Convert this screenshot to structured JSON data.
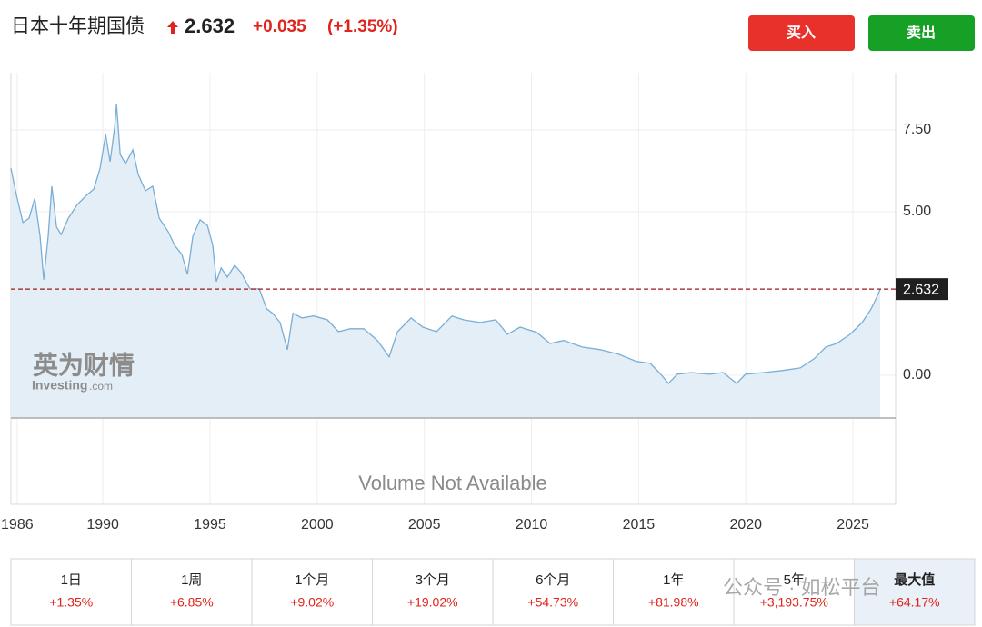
{
  "header": {
    "title": "日本十年期国债",
    "price": "2.632",
    "change": "+0.035",
    "change_pct": "(+1.35%)"
  },
  "buttons": {
    "buy": "买入",
    "sell": "卖出"
  },
  "watermark": {
    "brand": "英为财情",
    "site": "Investing",
    "domain": ".com",
    "wechat": "公众号 · 如松平台"
  },
  "volume_note": "Volume Not Available",
  "chart_data": {
    "type": "area",
    "color": "#7aaed6",
    "fill": "#e4eef6",
    "grid": true,
    "x": [
      1985.71,
      1985.97,
      1986.27,
      1986.56,
      1986.82,
      1987.07,
      1987.24,
      1987.45,
      1987.62,
      1987.84,
      1988.05,
      1988.39,
      1988.81,
      1989.24,
      1989.58,
      1989.87,
      1990.13,
      1990.34,
      1990.55,
      1990.64,
      1990.81,
      1991.06,
      1991.4,
      1991.65,
      1991.99,
      1992.33,
      1992.63,
      1993.05,
      1993.35,
      1993.69,
      1993.95,
      1994.2,
      1994.54,
      1994.88,
      1995.13,
      1995.3,
      1995.52,
      1995.81,
      1996.15,
      1996.45,
      1996.87,
      1997.3,
      1997.64,
      1997.93,
      1998.27,
      1998.61,
      1998.87,
      1999.29,
      1999.84,
      2000.48,
      2000.99,
      2001.54,
      2002.18,
      2002.81,
      2003.36,
      2003.75,
      2004.38,
      2004.93,
      2005.57,
      2006.29,
      2006.84,
      2007.61,
      2008.33,
      2008.88,
      2009.47,
      2010.24,
      2010.87,
      2011.51,
      2012.36,
      2013.21,
      2014.06,
      2014.9,
      2015.54,
      2015.96,
      2016.39,
      2016.81,
      2017.45,
      2018.3,
      2018.94,
      2019.57,
      2019.99,
      2020.84,
      2021.69,
      2022.54,
      2023.18,
      2023.73,
      2024.24,
      2024.87,
      2025.43,
      2025.85,
      2026.15,
      2026.27
    ],
    "series": [
      {
        "name": "日本十年期国债",
        "values": [
          6.33,
          5.5,
          4.67,
          4.8,
          5.4,
          4.25,
          2.92,
          4.25,
          5.78,
          4.53,
          4.3,
          4.8,
          5.22,
          5.5,
          5.69,
          6.33,
          7.36,
          6.53,
          7.58,
          8.28,
          6.75,
          6.47,
          6.89,
          6.14,
          5.64,
          5.78,
          4.8,
          4.39,
          3.97,
          3.69,
          3.08,
          4.25,
          4.75,
          4.58,
          3.97,
          2.86,
          3.28,
          3.0,
          3.36,
          3.14,
          2.64,
          2.64,
          2.03,
          1.89,
          1.61,
          0.78,
          1.89,
          1.75,
          1.81,
          1.69,
          1.33,
          1.42,
          1.42,
          1.06,
          0.56,
          1.33,
          1.75,
          1.47,
          1.33,
          1.81,
          1.69,
          1.61,
          1.69,
          1.25,
          1.47,
          1.31,
          0.97,
          1.06,
          0.86,
          0.78,
          0.64,
          0.42,
          0.36,
          0.08,
          -0.25,
          0.03,
          0.08,
          0.03,
          0.08,
          -0.25,
          0.03,
          0.08,
          0.14,
          0.22,
          0.5,
          0.86,
          0.97,
          1.25,
          1.61,
          2.03,
          2.44,
          2.632
        ]
      }
    ],
    "last_value": 2.632,
    "last_color": "#a01818",
    "xlim": [
      1985.71,
      2026.99
    ],
    "xticks": [
      1986,
      1990,
      1995,
      2000,
      2005,
      2010,
      2015,
      2020,
      2025
    ],
    "ylim": [
      -1.31,
      9.25
    ],
    "yticks": [
      {
        "value": 0,
        "label": "0.00"
      },
      {
        "value": 5,
        "label": "5.00"
      },
      {
        "value": 7.5,
        "label": "7.50"
      }
    ]
  },
  "periods": [
    {
      "label": "1日",
      "change": "+1.35%"
    },
    {
      "label": "1周",
      "change": "+6.85%"
    },
    {
      "label": "1个月",
      "change": "+9.02%"
    },
    {
      "label": "3个月",
      "change": "+19.02%"
    },
    {
      "label": "6个月",
      "change": "+54.73%"
    },
    {
      "label": "1年",
      "change": "+81.98%"
    },
    {
      "label": "5年",
      "change": "+3,193.75%"
    },
    {
      "label": "最大值",
      "change": "+64.17%"
    }
  ]
}
